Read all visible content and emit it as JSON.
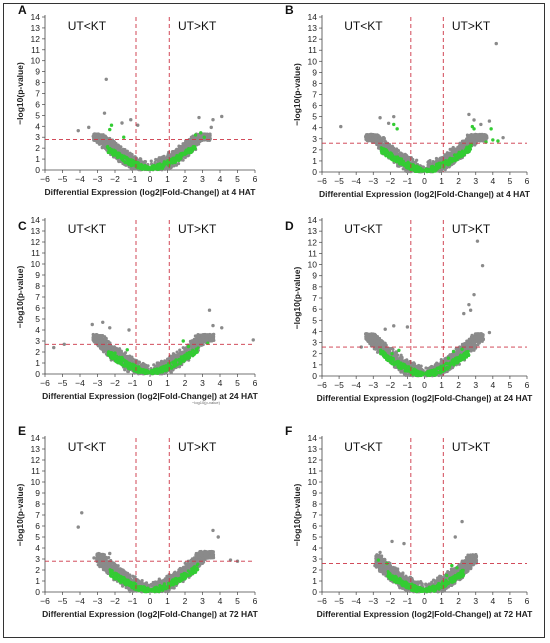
{
  "chart_data": [
    {
      "type": "scatter",
      "panel": "A",
      "xlabel": "Differential Expression (log2|Fold-Change|) at 4 HAT",
      "ylabel": "−log10(p-value)",
      "xlim": [
        -6,
        6
      ],
      "ylim": [
        0,
        14
      ],
      "xticks": [
        "−6",
        "−5",
        "−4",
        "−3",
        "−2",
        "−1",
        "0",
        "1",
        "2",
        "3",
        "4",
        "5",
        "6"
      ],
      "yticks": [
        "0",
        "1",
        "2",
        "3",
        "4",
        "5",
        "6",
        "7",
        "8",
        "9",
        "10",
        "11",
        "12",
        "13",
        "14"
      ],
      "region_left": "UT<KT",
      "region_right": "UT>KT",
      "thresholds": {
        "x": [
          -0.8,
          1.1
        ],
        "y": 2.8
      },
      "colors": {
        "point": "#8a8a8a",
        "highlight": "#33cc33",
        "threshold": "#cc3344"
      },
      "outliers": [
        [
          -2.5,
          8.3
        ],
        [
          -2.6,
          5.2
        ],
        [
          2.8,
          4.8
        ],
        [
          4.1,
          4.9
        ],
        [
          3.6,
          4.6
        ],
        [
          -1.1,
          4.6
        ],
        [
          -1.6,
          4.3
        ],
        [
          -3.5,
          3.9
        ],
        [
          -4.1,
          3.6
        ],
        [
          3.5,
          3.9
        ],
        [
          -0.7,
          4.1
        ]
      ],
      "highlights": [
        [
          -2.2,
          4.1
        ],
        [
          -2.3,
          3.7
        ],
        [
          2.9,
          3.4
        ],
        [
          2.6,
          3.2
        ],
        [
          3.1,
          3.0
        ],
        [
          -1.5,
          3.0
        ]
      ],
      "cloud": {
        "left": {
          "width": 3.2,
          "peak": 3.3
        },
        "right": {
          "width": 3.4,
          "peak": 3.3
        }
      }
    },
    {
      "type": "scatter",
      "panel": "B",
      "xlabel": "Differential Expression (log2|Fold-Change|) at 4 HAT",
      "ylabel": "−log10(p-value)",
      "xlim": [
        -6,
        6
      ],
      "ylim": [
        0,
        14
      ],
      "xticks": [
        "−6",
        "−5",
        "−4",
        "−3",
        "−2",
        "−1",
        "0",
        "1",
        "2",
        "3",
        "4",
        "5",
        "6"
      ],
      "yticks": [
        "0",
        "1",
        "2",
        "3",
        "4",
        "5",
        "6",
        "7",
        "8",
        "9",
        "10",
        "11",
        "12",
        "13",
        "14"
      ],
      "region_left": "UT<KT",
      "region_right": "UT>KT",
      "thresholds": {
        "x": [
          -0.8,
          1.1
        ],
        "y": 2.6
      },
      "colors": {
        "point": "#8a8a8a",
        "highlight": "#33cc33",
        "threshold": "#cc3344"
      },
      "outliers": [
        [
          4.2,
          11.6
        ],
        [
          2.6,
          5.2
        ],
        [
          2.9,
          4.7
        ],
        [
          3.3,
          4.3
        ],
        [
          3.8,
          4.6
        ],
        [
          -2.6,
          4.9
        ],
        [
          -1.8,
          5.0
        ],
        [
          -4.9,
          4.1
        ],
        [
          -2.1,
          4.4
        ],
        [
          4.6,
          3.1
        ],
        [
          3.1,
          3.2
        ]
      ],
      "highlights": [
        [
          -1.8,
          4.3
        ],
        [
          -1.6,
          3.9
        ],
        [
          2.8,
          4.1
        ],
        [
          2.9,
          3.9
        ],
        [
          3.9,
          3.9
        ],
        [
          4.0,
          2.9
        ],
        [
          4.3,
          2.8
        ],
        [
          3.6,
          2.7
        ]
      ],
      "cloud": {
        "left": {
          "width": 3.4,
          "peak": 3.4
        },
        "right": {
          "width": 3.6,
          "peak": 3.4
        }
      }
    },
    {
      "type": "scatter",
      "panel": "C",
      "xlabel": "Differential Expression (log2|Fold-Change|) at 24 HAT",
      "ylabel": "−log10(p-value)",
      "xlim": [
        -6,
        6
      ],
      "ylim": [
        0,
        14
      ],
      "xticks": [
        "−6",
        "−5",
        "−4",
        "−3",
        "−2",
        "−1",
        "0",
        "1",
        "2",
        "3",
        "4",
        "5",
        "6"
      ],
      "yticks": [
        "0",
        "1",
        "2",
        "3",
        "4",
        "5",
        "6",
        "7",
        "8",
        "9",
        "10",
        "11",
        "12",
        "13",
        "14"
      ],
      "region_left": "UT<KT",
      "region_right": "UT>KT",
      "thresholds": {
        "x": [
          -0.8,
          1.1
        ],
        "y": 2.7
      },
      "colors": {
        "point": "#8a8a8a",
        "highlight": "#33cc33",
        "threshold": "#cc3344"
      },
      "outliers": [
        [
          3.4,
          5.8
        ],
        [
          -2.7,
          4.7
        ],
        [
          -3.3,
          4.5
        ],
        [
          -2.3,
          4.2
        ],
        [
          -4.9,
          2.7
        ],
        [
          -5.5,
          2.4
        ],
        [
          5.9,
          3.1
        ],
        [
          4.1,
          4.2
        ],
        [
          3.6,
          4.4
        ],
        [
          -1.2,
          4.0
        ]
      ],
      "highlights": [
        [
          -2.0,
          1.9
        ],
        [
          -1.6,
          1.5
        ],
        [
          2.2,
          2.5
        ],
        [
          3.3,
          2.8
        ],
        [
          1.9,
          3.0
        ],
        [
          -1.3,
          2.2
        ]
      ],
      "cloud": {
        "left": {
          "width": 3.2,
          "peak": 3.6
        },
        "right": {
          "width": 3.6,
          "peak": 3.6
        }
      },
      "note": "−log10(p-value)"
    },
    {
      "type": "scatter",
      "panel": "D",
      "xlabel": "Differential Expression (log2|Fold-Change|) at 24 HAT",
      "ylabel": "−log10(p-value)",
      "xlim": [
        -6,
        6
      ],
      "ylim": [
        0,
        14
      ],
      "xticks": [
        "−6",
        "−5",
        "−4",
        "−3",
        "−2",
        "−1",
        "0",
        "1",
        "2",
        "3",
        "4",
        "5",
        "6"
      ],
      "yticks": [
        "0",
        "1",
        "2",
        "3",
        "4",
        "5",
        "6",
        "7",
        "8",
        "9",
        "10",
        "11",
        "12",
        "13",
        "14"
      ],
      "region_left": "UT<KT",
      "region_right": "UT>KT",
      "thresholds": {
        "x": [
          -0.8,
          1.1
        ],
        "y": 2.6
      },
      "colors": {
        "point": "#8a8a8a",
        "highlight": "#33cc33",
        "threshold": "#cc3344"
      },
      "outliers": [
        [
          3.1,
          12.1
        ],
        [
          3.4,
          9.9
        ],
        [
          2.9,
          7.3
        ],
        [
          2.6,
          6.4
        ],
        [
          2.7,
          5.9
        ],
        [
          2.3,
          5.6
        ],
        [
          -1.8,
          4.5
        ],
        [
          -2.3,
          4.2
        ],
        [
          -1.0,
          4.4
        ],
        [
          3.8,
          3.9
        ],
        [
          -3.7,
          2.6
        ]
      ],
      "highlights": [
        [
          -1.9,
          2.0
        ],
        [
          -1.5,
          2.3
        ],
        [
          -2.2,
          1.7
        ],
        [
          1.7,
          2.2
        ],
        [
          2.2,
          2.4
        ],
        [
          1.4,
          1.6
        ]
      ],
      "cloud": {
        "left": {
          "width": 3.4,
          "peak": 3.8
        },
        "right": {
          "width": 3.4,
          "peak": 3.8
        }
      }
    },
    {
      "type": "scatter",
      "panel": "E",
      "xlabel": "Differential Expression (log2|Fold-Change|) at 72 HAT",
      "ylabel": "−log10(p-value)",
      "xlim": [
        -6,
        6
      ],
      "ylim": [
        0,
        14
      ],
      "xticks": [
        "−6",
        "−5",
        "−4",
        "−3",
        "−2",
        "−1",
        "0",
        "1",
        "2",
        "3",
        "4",
        "5",
        "6"
      ],
      "yticks": [
        "0",
        "1",
        "2",
        "3",
        "4",
        "5",
        "6",
        "7",
        "8",
        "9",
        "10",
        "11",
        "12",
        "13",
        "14"
      ],
      "region_left": "UT<KT",
      "region_right": "UT>KT",
      "thresholds": {
        "x": [
          -0.8,
          1.1
        ],
        "y": 2.8
      },
      "colors": {
        "point": "#8a8a8a",
        "highlight": "#33cc33",
        "threshold": "#cc3344"
      },
      "outliers": [
        [
          -3.9,
          7.2
        ],
        [
          -4.1,
          5.9
        ],
        [
          3.6,
          5.6
        ],
        [
          3.9,
          5.0
        ],
        [
          4.6,
          2.9
        ],
        [
          5.0,
          2.8
        ],
        [
          -2.3,
          3.5
        ],
        [
          -3.2,
          3.1
        ]
      ],
      "highlights": [
        [
          -1.5,
          1.3
        ],
        [
          -1.0,
          0.8
        ],
        [
          1.7,
          1.0
        ],
        [
          2.1,
          1.5
        ],
        [
          1.3,
          1.1
        ],
        [
          -2.0,
          1.7
        ],
        [
          2.6,
          1.8
        ]
      ],
      "cloud": {
        "left": {
          "width": 3.0,
          "peak": 3.5
        },
        "right": {
          "width": 3.6,
          "peak": 3.7
        }
      }
    },
    {
      "type": "scatter",
      "panel": "F",
      "xlabel": "Differential Expression (log2|Fold-Change|) at 72 HAT",
      "ylabel": "−log10(p-value)",
      "xlim": [
        -6,
        6
      ],
      "ylim": [
        0,
        14
      ],
      "xticks": [
        "−6",
        "−5",
        "−4",
        "−3",
        "−2",
        "−1",
        "0",
        "1",
        "2",
        "3",
        "4",
        "5",
        "6"
      ],
      "yticks": [
        "0",
        "1",
        "2",
        "3",
        "4",
        "5",
        "6",
        "7",
        "8",
        "9",
        "10",
        "11",
        "12",
        "13",
        "14"
      ],
      "region_left": "UT<KT",
      "region_right": "UT>KT",
      "thresholds": {
        "x": [
          -0.8,
          1.1
        ],
        "y": 2.6
      },
      "colors": {
        "point": "#8a8a8a",
        "highlight": "#33cc33",
        "threshold": "#cc3344"
      },
      "outliers": [
        [
          2.2,
          6.4
        ],
        [
          1.8,
          5.0
        ],
        [
          -1.9,
          4.6
        ],
        [
          -1.2,
          4.4
        ],
        [
          -2.6,
          3.6
        ],
        [
          2.8,
          3.2
        ],
        [
          -2.9,
          2.4
        ]
      ],
      "highlights": [
        [
          -2.7,
          2.9
        ],
        [
          -2.2,
          2.6
        ],
        [
          -1.1,
          0.9
        ],
        [
          1.6,
          2.4
        ],
        [
          1.9,
          2.2
        ],
        [
          1.3,
          1.5
        ],
        [
          -0.8,
          0.6
        ]
      ],
      "cloud": {
        "left": {
          "width": 2.8,
          "peak": 3.4
        },
        "right": {
          "width": 3.0,
          "peak": 3.4
        }
      }
    }
  ]
}
